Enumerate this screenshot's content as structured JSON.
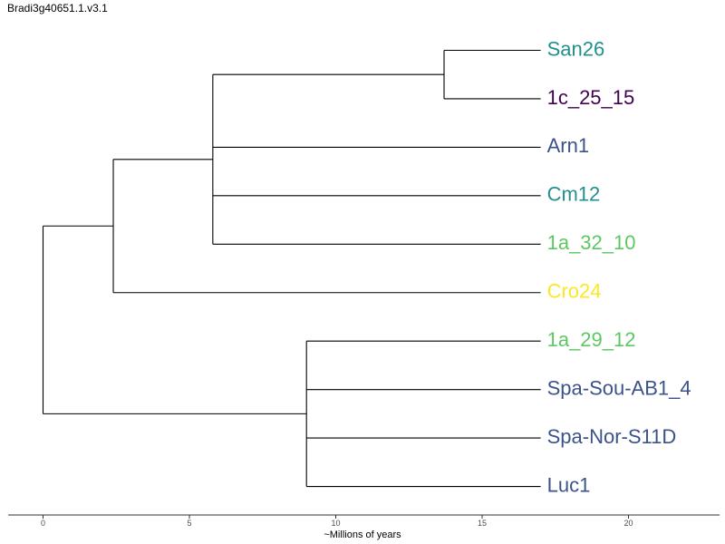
{
  "title": "Bradi3g40651.1.v3.1",
  "axis": {
    "title": "~Millions of years",
    "ticks": [
      "0",
      "5",
      "10",
      "15",
      "20"
    ]
  },
  "tips": [
    {
      "label": "San26",
      "color": "#21908C"
    },
    {
      "label": "1c_25_15",
      "color": "#440154"
    },
    {
      "label": "Arn1",
      "color": "#3B528B"
    },
    {
      "label": "Cm12",
      "color": "#21908C"
    },
    {
      "label": "1a_32_10",
      "color": "#5DC863"
    },
    {
      "label": "Cro24",
      "color": "#FDE725"
    },
    {
      "label": "1a_29_12",
      "color": "#5DC863"
    },
    {
      "label": "Spa-Sou-AB1_4",
      "color": "#3B528B"
    },
    {
      "label": "Spa-Nor-S11D",
      "color": "#3B528B"
    },
    {
      "label": "Luc1",
      "color": "#3B528B"
    }
  ],
  "tree": {
    "x_unit": "Millions of years",
    "root_x": 0,
    "tip_x": 17,
    "nodes": [
      {
        "id": "n_san_1c",
        "x": 13.7,
        "children": [
          "San26",
          "1c_25_15"
        ]
      },
      {
        "id": "n_ingroup",
        "x": 5.8,
        "children": [
          "n_san_1c",
          "Arn1",
          "Cm12",
          "1a_32_10"
        ]
      },
      {
        "id": "n_with_cro",
        "x": 2.4,
        "children": [
          "n_ingroup",
          "Cro24"
        ]
      },
      {
        "id": "n_clade_b",
        "x": 9.0,
        "children": [
          "1a_29_12",
          "Spa-Sou-AB1_4",
          "Spa-Nor-S11D",
          "Luc1"
        ]
      },
      {
        "id": "root",
        "x": 0,
        "children": [
          "n_with_cro",
          "n_clade_b"
        ]
      }
    ]
  }
}
